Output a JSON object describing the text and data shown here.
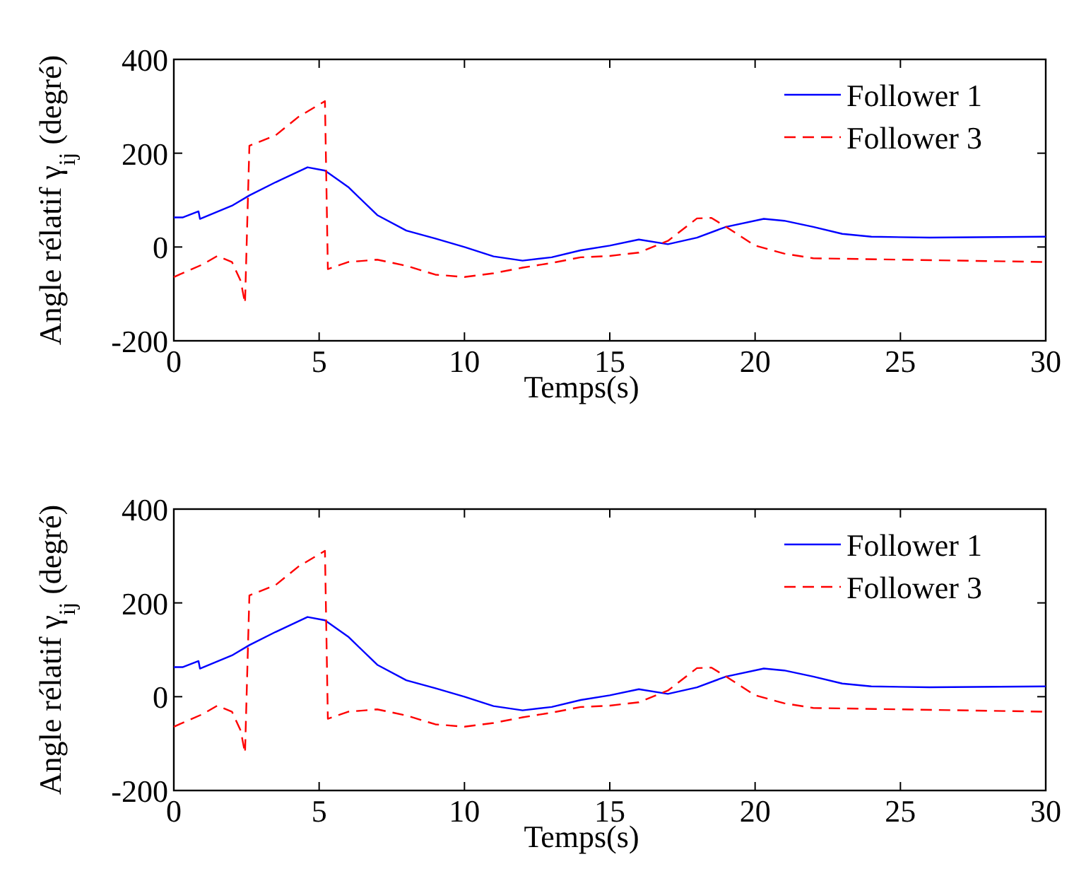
{
  "chart_data": [
    {
      "type": "line",
      "xlabel": "Temps(s)",
      "ylabel": "Angle rélatif  γ$_{ij}$ (degré)",
      "xlim": [
        0,
        30
      ],
      "ylim": [
        -200,
        400
      ],
      "xticks": [
        0,
        5,
        10,
        15,
        20,
        25,
        30
      ],
      "yticks": [
        -200,
        0,
        200,
        400
      ],
      "grid": false,
      "legend": "top right",
      "series": [
        {
          "name": "Follower 1",
          "color": "#0000ff",
          "line_style": "solid",
          "x": [
            0,
            0.3,
            0.85,
            0.9,
            2,
            2.6,
            3.5,
            4.6,
            5.2,
            6,
            7,
            8,
            9,
            10,
            11,
            12,
            13,
            14,
            15,
            16,
            17,
            18,
            19,
            20.3,
            21,
            22,
            23,
            24,
            26,
            30
          ],
          "values": [
            63,
            63,
            76,
            60,
            88,
            110,
            138,
            170,
            163,
            128,
            68,
            35,
            18,
            0,
            -20,
            -29,
            -22,
            -7,
            3,
            16,
            6,
            20,
            43,
            60,
            56,
            43,
            28,
            22,
            20,
            22
          ]
        },
        {
          "name": "Follower 3",
          "color": "#ff0000",
          "line_style": "dashed",
          "x": [
            0,
            1,
            1.5,
            2,
            2.3,
            2.45,
            2.6,
            3.5,
            4.3,
            5.2,
            5.3,
            6,
            7,
            8,
            9,
            10,
            11,
            12,
            13,
            14,
            15,
            16,
            17,
            18,
            18.5,
            19,
            20,
            21,
            22,
            25,
            30
          ],
          "values": [
            -64,
            -37,
            -19,
            -32,
            -72,
            -120,
            216,
            238,
            278,
            311,
            -47,
            -32,
            -27,
            -40,
            -59,
            -64,
            -56,
            -44,
            -34,
            -22,
            -19,
            -12,
            13,
            61,
            62,
            43,
            3,
            -14,
            -24,
            -27,
            -32
          ]
        }
      ]
    },
    {
      "type": "line",
      "xlabel": "Temps(s)",
      "ylabel": "Angle rélatif  γ$_{ij}$ (degré)",
      "xlim": [
        0,
        30
      ],
      "ylim": [
        -200,
        400
      ],
      "xticks": [
        0,
        5,
        10,
        15,
        20,
        25,
        30
      ],
      "yticks": [
        -200,
        0,
        200,
        400
      ],
      "grid": false,
      "legend": "top right",
      "series": [
        {
          "name": "Follower 1",
          "color": "#0000ff",
          "line_style": "solid",
          "x": [
            0,
            0.3,
            0.85,
            0.9,
            2,
            2.6,
            3.5,
            4.6,
            5.2,
            6,
            7,
            8,
            9,
            10,
            11,
            12,
            13,
            14,
            15,
            16,
            17,
            18,
            19,
            20.3,
            21,
            22,
            23,
            24,
            26,
            30
          ],
          "values": [
            63,
            63,
            76,
            60,
            88,
            110,
            138,
            170,
            163,
            128,
            68,
            35,
            18,
            0,
            -20,
            -29,
            -22,
            -7,
            3,
            16,
            6,
            20,
            43,
            60,
            56,
            43,
            28,
            22,
            20,
            22
          ]
        },
        {
          "name": "Follower 3",
          "color": "#ff0000",
          "line_style": "dashed",
          "x": [
            0,
            1,
            1.5,
            2,
            2.3,
            2.45,
            2.6,
            3.5,
            4.3,
            5.2,
            5.3,
            6,
            7,
            8,
            9,
            10,
            11,
            12,
            13,
            14,
            15,
            16,
            17,
            18,
            18.5,
            19,
            20,
            21,
            22,
            25,
            30
          ],
          "values": [
            -64,
            -37,
            -19,
            -32,
            -72,
            -120,
            216,
            238,
            278,
            311,
            -47,
            -32,
            -27,
            -40,
            -59,
            -64,
            -56,
            -44,
            -34,
            -22,
            -19,
            -12,
            13,
            61,
            62,
            43,
            3,
            -14,
            -24,
            -27,
            -32
          ]
        }
      ]
    }
  ]
}
